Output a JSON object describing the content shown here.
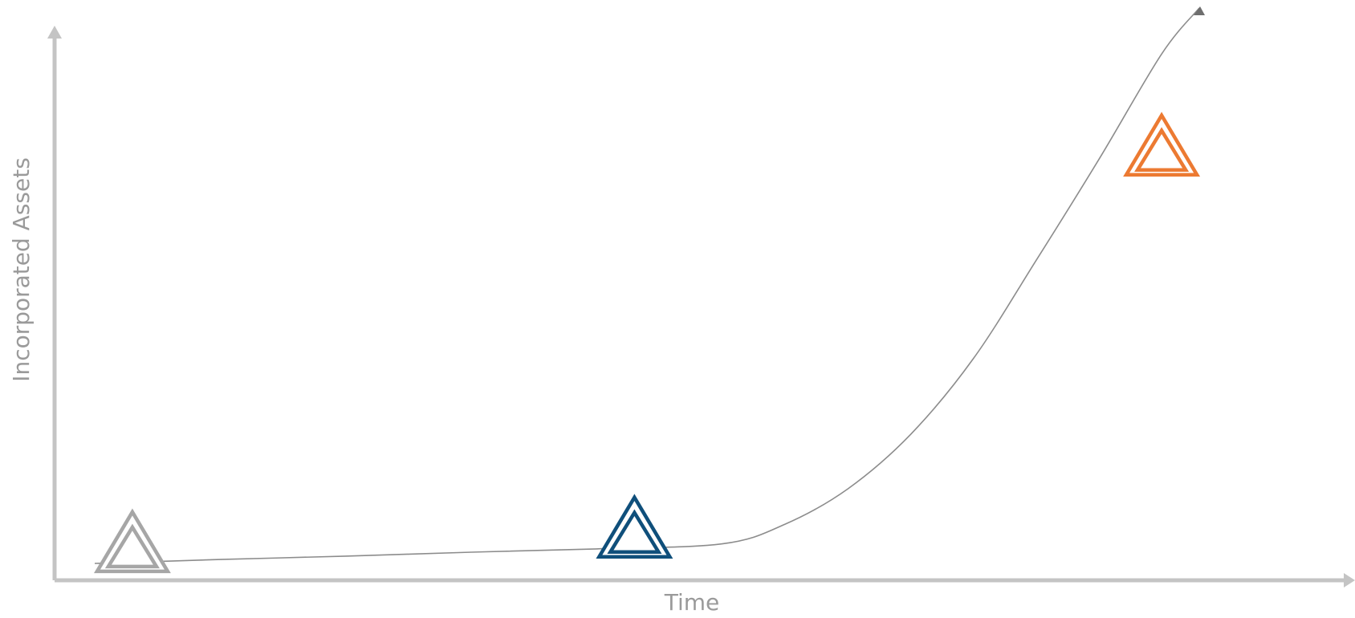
{
  "chart_data": {
    "type": "line",
    "title": "",
    "xlabel": "Time",
    "ylabel": "Incorporated Assets",
    "x_ticks": [],
    "y_ticks": [],
    "grid": false,
    "axis_color": "#c4c4c4",
    "curve_color": "#8c8c8c",
    "curve": {
      "x": [
        0.0,
        10.0,
        20.0,
        30.0,
        40.0,
        50.0,
        55.0,
        60.0,
        65.0,
        70.0,
        75.0,
        80.0,
        85.0,
        88.0
      ],
      "y": [
        3.0,
        3.7,
        4.3,
        5.0,
        5.6,
        6.5,
        10.0,
        16.3,
        26.0,
        39.5,
        57.0,
        75.0,
        93.8,
        102.0
      ]
    },
    "markers": [
      {
        "x": 3,
        "y": 3.3,
        "color": "#a6a6a6"
      },
      {
        "x": 43,
        "y": 5.9,
        "color": "#0f4f7b"
      },
      {
        "x": 85,
        "y": 74.0,
        "color": "#ec7a32"
      }
    ]
  }
}
